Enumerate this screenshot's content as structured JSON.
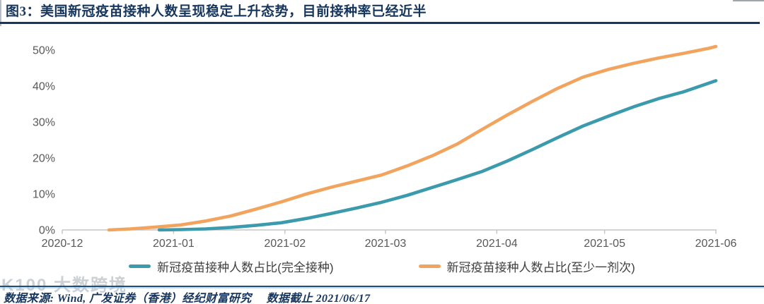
{
  "header": {
    "title": "图3：美国新冠疫苗接种人数呈现稳定上升态势，目前接种率已经近半"
  },
  "chart_data": {
    "type": "line",
    "title": "美国新冠疫苗接种人数呈现稳定上升态势，目前接种率已经近半",
    "xlabel": "",
    "ylabel": "",
    "x_range": [
      "2020-12-01",
      "2021-06-01"
    ],
    "ylim": [
      0,
      55
    ],
    "grid": false,
    "legend_position": "bottom",
    "xticks": [
      "2020-12",
      "2021-01",
      "2021-02",
      "2021-03",
      "2021-04",
      "2021-05",
      "2021-06"
    ],
    "yticks": [
      {
        "value": 0,
        "label": "0%"
      },
      {
        "value": 10,
        "label": "10%"
      },
      {
        "value": 20,
        "label": "20%"
      },
      {
        "value": 30,
        "label": "30%"
      },
      {
        "value": 40,
        "label": "40%"
      },
      {
        "value": 50,
        "label": "50%"
      }
    ],
    "series": [
      {
        "name": "新冠疫苗接种人数占比(完全接种)",
        "color": "#3C9AAD",
        "points": [
          [
            "2020-12-28",
            0.0
          ],
          [
            "2021-01-03",
            0.1
          ],
          [
            "2021-01-10",
            0.3
          ],
          [
            "2021-01-17",
            0.7
          ],
          [
            "2021-01-24",
            1.3
          ],
          [
            "2021-01-31",
            2.0
          ],
          [
            "2021-02-07",
            3.2
          ],
          [
            "2021-02-14",
            4.6
          ],
          [
            "2021-02-21",
            6.1
          ],
          [
            "2021-02-28",
            7.7
          ],
          [
            "2021-03-07",
            9.6
          ],
          [
            "2021-03-14",
            11.8
          ],
          [
            "2021-03-21",
            14.0
          ],
          [
            "2021-03-28",
            16.3
          ],
          [
            "2021-04-04",
            19.2
          ],
          [
            "2021-04-11",
            22.4
          ],
          [
            "2021-04-18",
            25.7
          ],
          [
            "2021-04-25",
            28.9
          ],
          [
            "2021-05-02",
            31.6
          ],
          [
            "2021-05-09",
            34.2
          ],
          [
            "2021-05-16",
            36.5
          ],
          [
            "2021-05-23",
            38.4
          ],
          [
            "2021-05-30",
            40.8
          ],
          [
            "2021-06-01",
            41.5
          ]
        ]
      },
      {
        "name": "新冠疫苗接种人数占比(至少一剂次)",
        "color": "#F2A45F",
        "points": [
          [
            "2020-12-14",
            0.0
          ],
          [
            "2020-12-20",
            0.3
          ],
          [
            "2020-12-27",
            0.8
          ],
          [
            "2021-01-03",
            1.4
          ],
          [
            "2021-01-10",
            2.5
          ],
          [
            "2021-01-17",
            3.9
          ],
          [
            "2021-01-24",
            5.8
          ],
          [
            "2021-01-31",
            7.8
          ],
          [
            "2021-02-07",
            10.0
          ],
          [
            "2021-02-14",
            11.9
          ],
          [
            "2021-02-21",
            13.6
          ],
          [
            "2021-02-28",
            15.3
          ],
          [
            "2021-03-07",
            17.8
          ],
          [
            "2021-03-14",
            20.6
          ],
          [
            "2021-03-21",
            23.9
          ],
          [
            "2021-03-28",
            28.0
          ],
          [
            "2021-04-04",
            32.0
          ],
          [
            "2021-04-11",
            35.8
          ],
          [
            "2021-04-18",
            39.4
          ],
          [
            "2021-04-25",
            42.5
          ],
          [
            "2021-05-02",
            44.6
          ],
          [
            "2021-05-09",
            46.3
          ],
          [
            "2021-05-16",
            47.8
          ],
          [
            "2021-05-23",
            49.1
          ],
          [
            "2021-05-30",
            50.5
          ],
          [
            "2021-06-01",
            51.0
          ]
        ]
      }
    ],
    "colors": {
      "axis_line": "#C6C6C6",
      "tick_text": "#595959",
      "title_navy": "#17365D"
    }
  },
  "footer": {
    "source": "数据来源: Wind, 广发证券（香港）经纪财富研究　 数据截止 2021/06/17"
  },
  "watermark": {
    "text": "K100 大数跨境"
  }
}
